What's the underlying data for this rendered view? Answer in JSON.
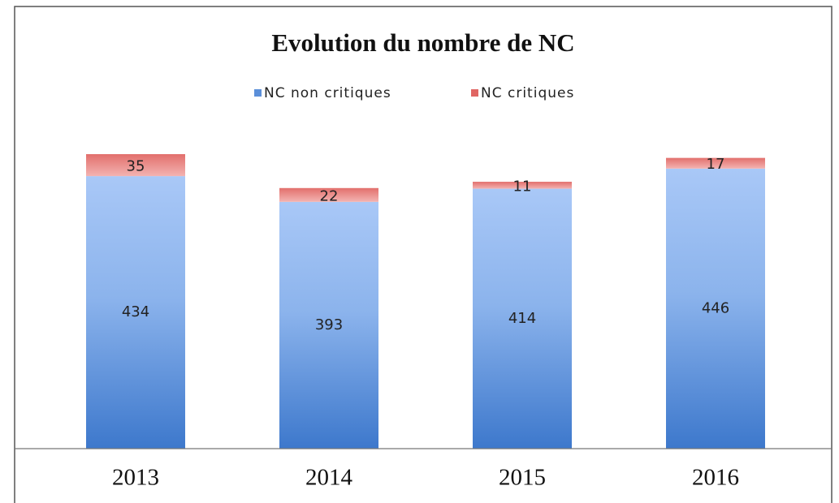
{
  "chart_data": {
    "type": "stacked_bar",
    "title": "Evolution du nombre de NC",
    "categories": [
      "2013",
      "2014",
      "2015",
      "2016"
    ],
    "series": [
      {
        "name": "NC non critiques",
        "color": "#5b8fd9",
        "values": [
          434,
          393,
          414,
          446
        ]
      },
      {
        "name": "NC critiques",
        "color": "#d9534f",
        "values": [
          35,
          22,
          11,
          17
        ]
      }
    ],
    "legend": "top"
  }
}
